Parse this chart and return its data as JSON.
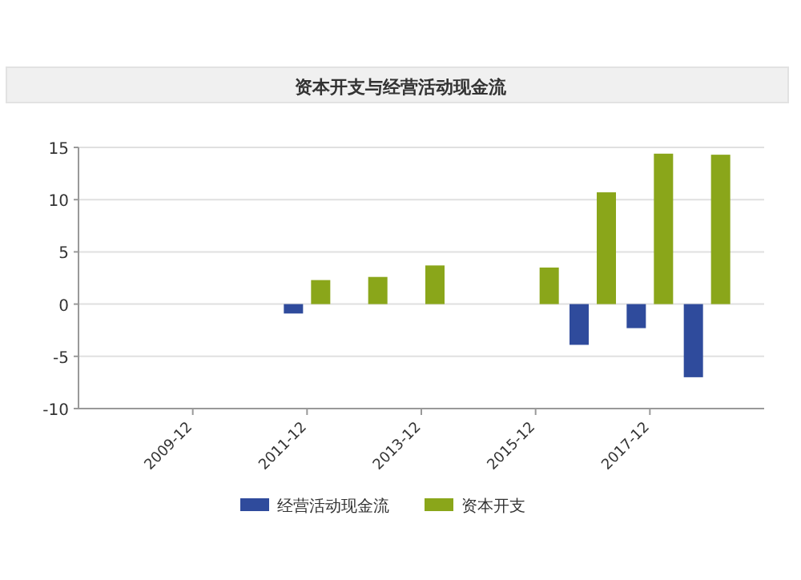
{
  "chart_data": {
    "type": "bar",
    "title": "资本开支与经营活动现金流",
    "categories": [
      null,
      "2009-12",
      null,
      "2011-12",
      null,
      "2013-12",
      null,
      "2015-12",
      null,
      "2017-12",
      null
    ],
    "series": [
      {
        "name": "经营活动现金流",
        "color": "#2f4b9c",
        "values": [
          null,
          null,
          null,
          -0.9,
          null,
          null,
          null,
          null,
          -3.9,
          -2.3,
          -7.0
        ]
      },
      {
        "name": "资本开支",
        "color": "#8aa61a",
        "values": [
          null,
          null,
          null,
          2.3,
          2.6,
          3.7,
          null,
          3.5,
          10.7,
          14.4,
          14.3
        ]
      }
    ],
    "ylim": [
      -10,
      15
    ],
    "yticks": [
      -10,
      -5,
      0,
      5,
      10,
      15
    ],
    "grid": "y",
    "legend": "bottom"
  }
}
